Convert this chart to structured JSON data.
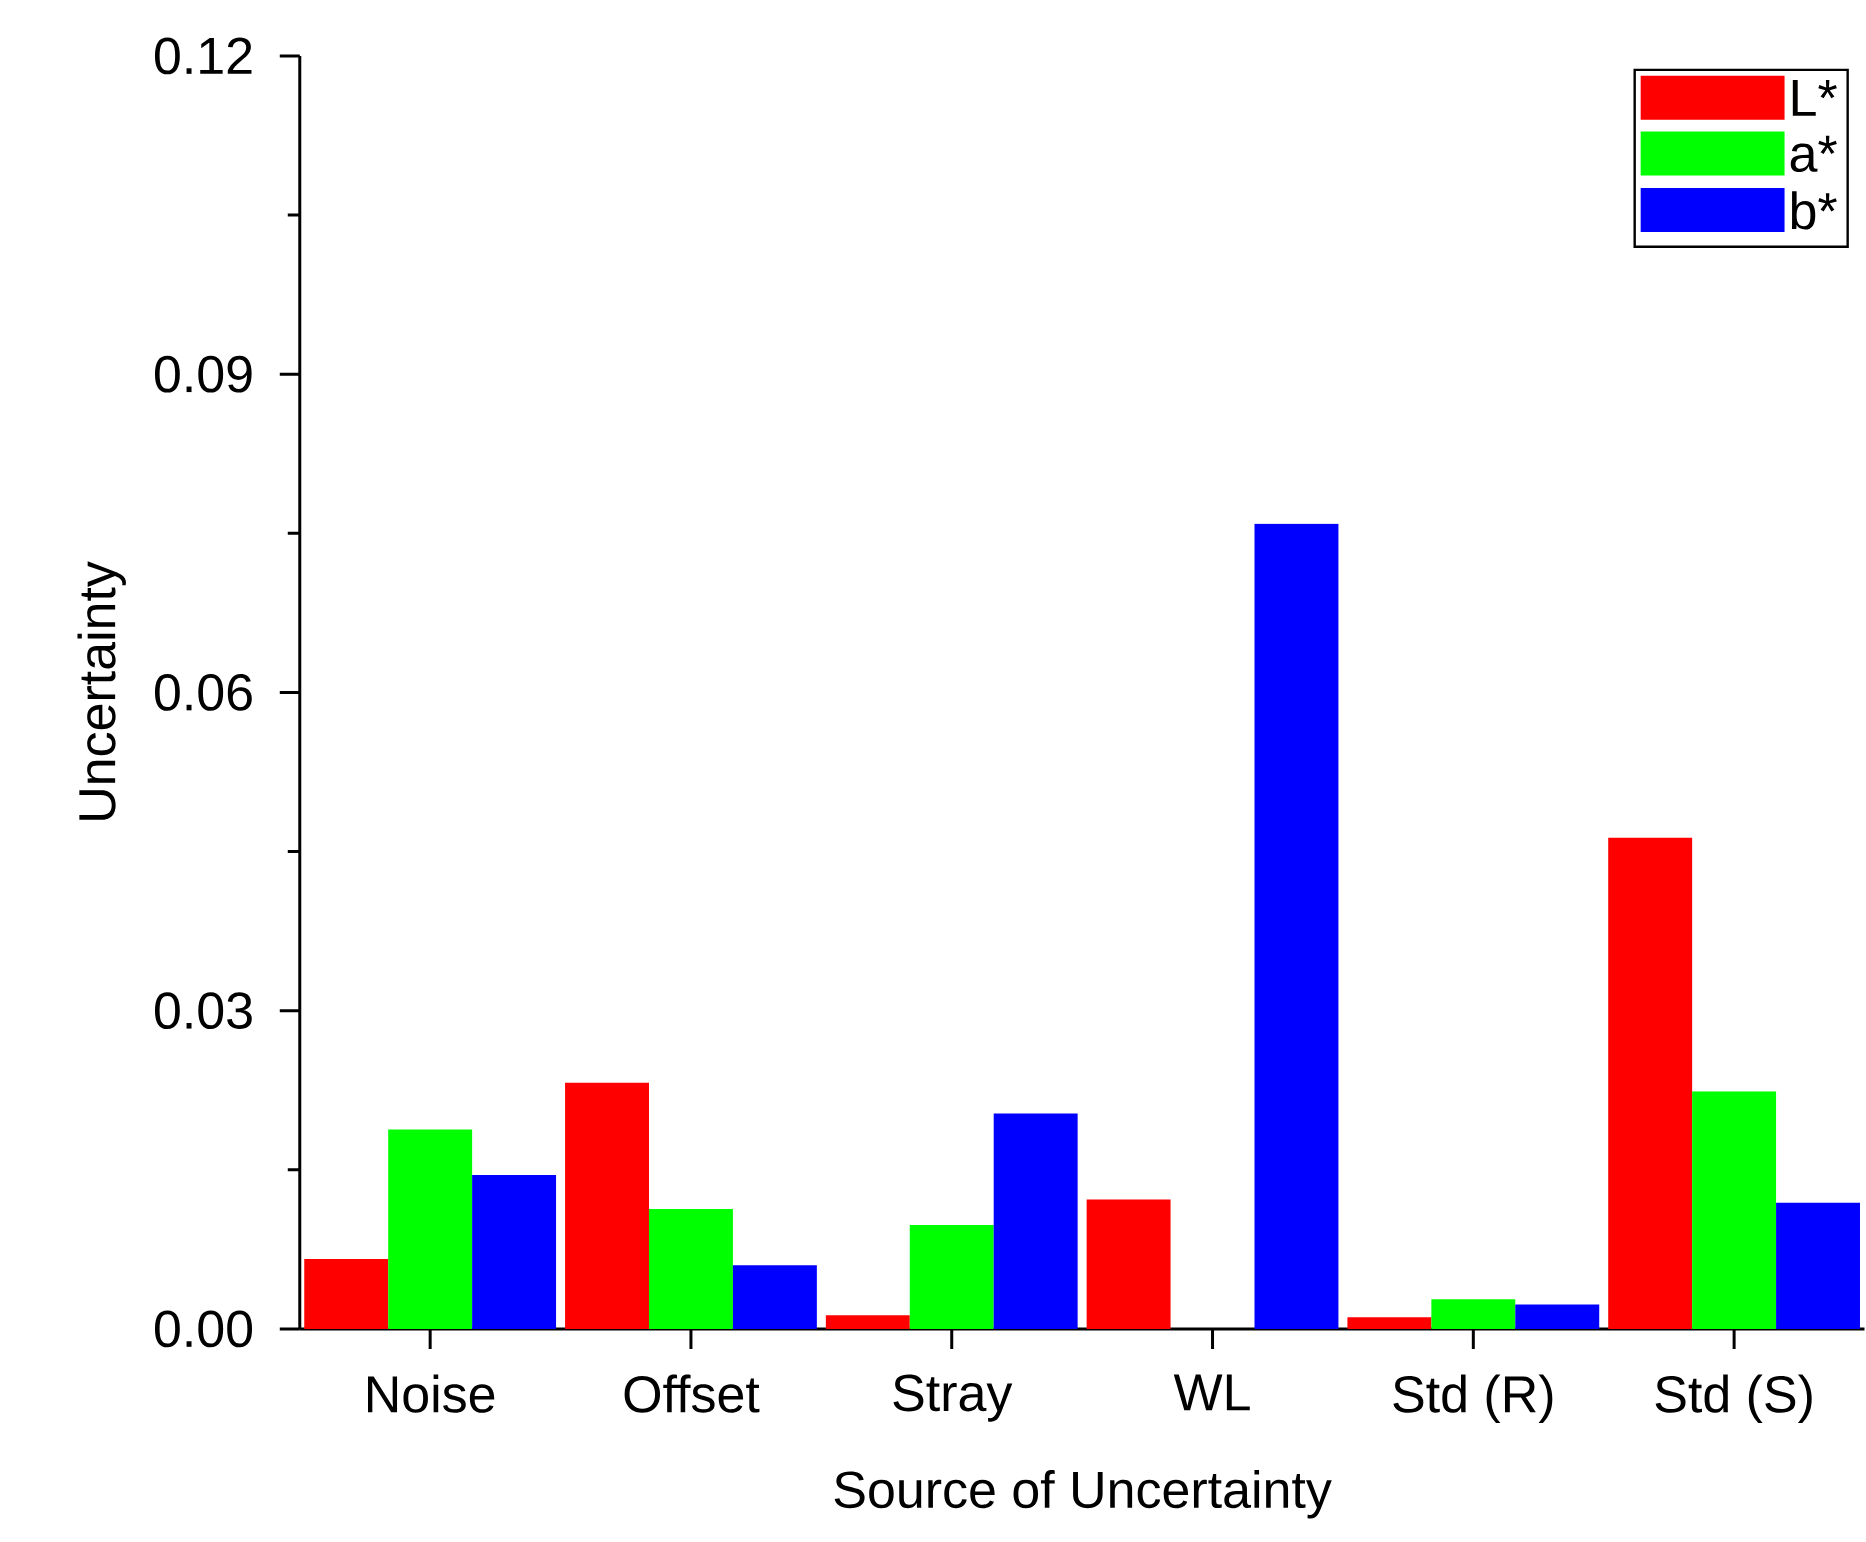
{
  "chart_data": {
    "type": "bar",
    "xlabel": "Source of Uncertainty",
    "ylabel": "Uncertainty",
    "categories": [
      "Noise",
      "Offset",
      "Stray",
      "WL",
      "Std (R)",
      "Std (S)"
    ],
    "series": [
      {
        "name": "L*",
        "color": "#ff0000",
        "values": [
          0.0066,
          0.0232,
          0.0013,
          0.0122,
          0.0011,
          0.0463
        ]
      },
      {
        "name": "a*",
        "color": "#00ff00",
        "values": [
          0.0188,
          0.0113,
          0.0098,
          0,
          0.0028,
          0.0224
        ]
      },
      {
        "name": "b*",
        "color": "#0000ff",
        "values": [
          0.0145,
          0.006,
          0.0203,
          0.0759,
          0.0023,
          0.0119
        ]
      }
    ],
    "ylim": [
      0,
      0.12
    ],
    "yticks": [
      {
        "value": 0,
        "label": "0.00"
      },
      {
        "value": 0.03,
        "label": "0.03"
      },
      {
        "value": 0.06,
        "label": "0.06"
      },
      {
        "value": 0.09,
        "label": "0.09"
      },
      {
        "value": 0.12,
        "label": "0.12"
      }
    ],
    "legend": "top right",
    "grid": false
  }
}
